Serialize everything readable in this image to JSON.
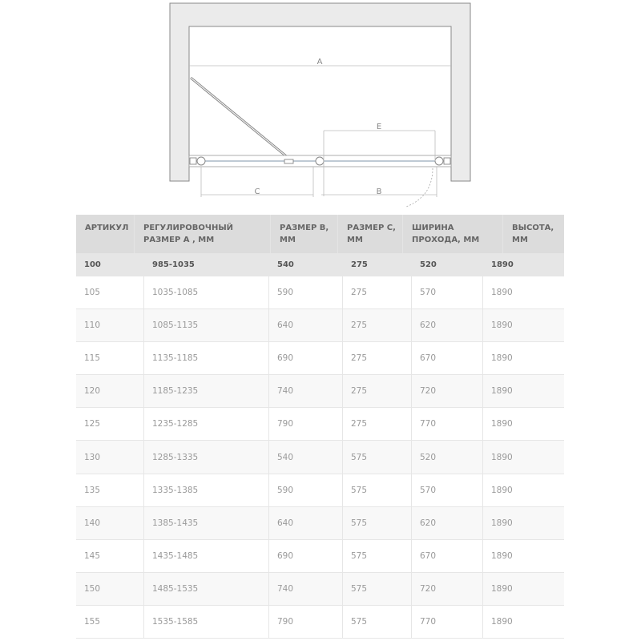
{
  "diagram": {
    "labels": {
      "a": "A",
      "b": "B",
      "c": "C",
      "e": "E"
    }
  },
  "table": {
    "headers": [
      "АРТИКУЛ",
      "РЕГУЛИРОВОЧНЫЙ РАЗМЕР А , ММ",
      "РАЗМЕР В, ММ",
      "РАЗМЕР С, ММ",
      "ШИРИНА ПРОХОДА, ММ",
      "ВЫСОТА, ММ"
    ],
    "rows": [
      [
        "100",
        "985-1035",
        "540",
        "275",
        "520",
        "1890"
      ],
      [
        "105",
        "1035-1085",
        "590",
        "275",
        "570",
        "1890"
      ],
      [
        "110",
        "1085-1135",
        "640",
        "275",
        "620",
        "1890"
      ],
      [
        "115",
        "1135-1185",
        "690",
        "275",
        "670",
        "1890"
      ],
      [
        "120",
        "1185-1235",
        "740",
        "275",
        "720",
        "1890"
      ],
      [
        "125",
        "1235-1285",
        "790",
        "275",
        "770",
        "1890"
      ],
      [
        "130",
        "1285-1335",
        "540",
        "575",
        "520",
        "1890"
      ],
      [
        "135",
        "1335-1385",
        "590",
        "575",
        "570",
        "1890"
      ],
      [
        "140",
        "1385-1435",
        "640",
        "575",
        "620",
        "1890"
      ],
      [
        "145",
        "1435-1485",
        "690",
        "575",
        "670",
        "1890"
      ],
      [
        "150",
        "1485-1535",
        "740",
        "575",
        "720",
        "1890"
      ],
      [
        "155",
        "1535-1585",
        "790",
        "575",
        "770",
        "1890"
      ]
    ]
  }
}
